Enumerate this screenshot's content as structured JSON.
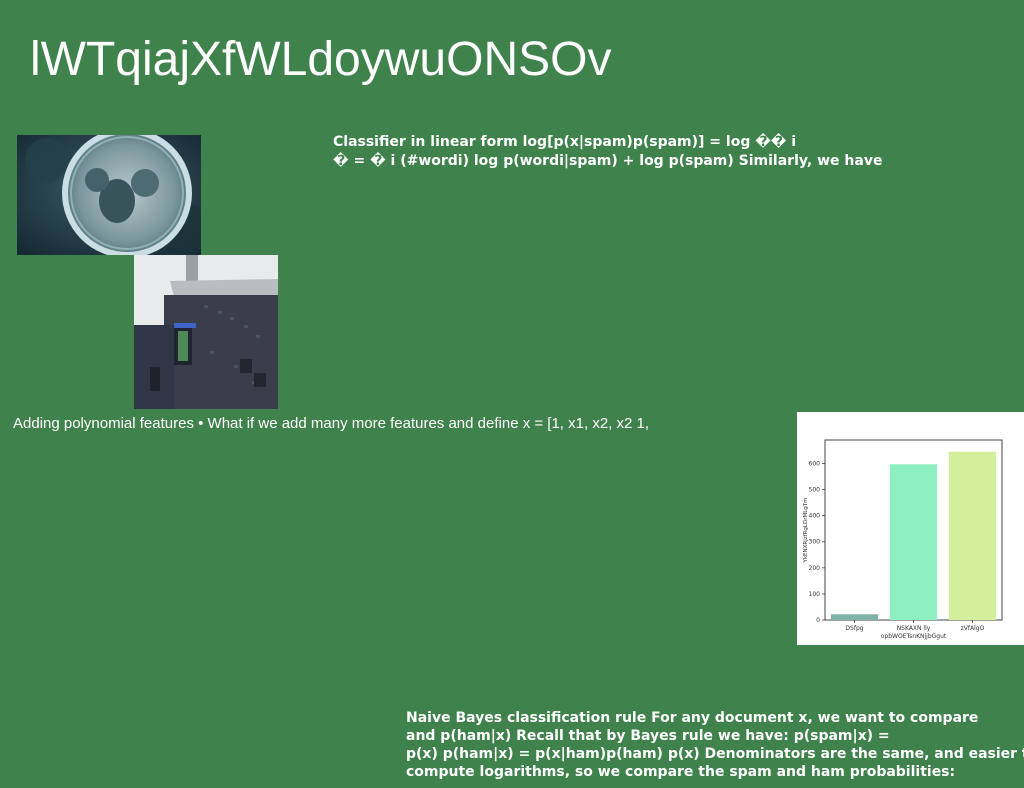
{
  "slide": {
    "title": "lWTqiajXfWLdoywuONSOv",
    "text_block_1": [
      "Classifier in linear form log[p(x|spam)p(spam)] = log �� i",
      "� = � i (#wordi) log p(wordi|spam) + log p(spam) Similarly, we have"
    ],
    "text_line_2": "Adding polynomial features • What if we add many more features and define x = [1, x1, x2, x2 1,",
    "text_block_3": [
      "Naive Bayes classification rule For any document x, we want to compare",
      "and p(ham|x) Recall that by Bayes rule we have: p(spam|x) =",
      "p(x) p(ham|x) = p(x|ham)p(ham) p(x) Denominators are the same, and easier to",
      "compute logarithms, so we compare the spam and ham probabilities:"
    ]
  },
  "colors": {
    "background": "#3f824c",
    "text": "#ffffff",
    "bar_colors": [
      "#7fb3a6",
      "#8eefc0",
      "#d2f09c"
    ]
  },
  "images": {
    "photo_1": "lens-photo",
    "photo_2": "building-photo"
  },
  "chart_data": {
    "type": "bar",
    "categories": [
      "DSfpg",
      "NSKAXN lly",
      "zVfAlgO"
    ],
    "values": [
      22,
      597,
      645
    ],
    "title": "",
    "xlabel": "opbWOETsnKNjjbGgut",
    "ylabel": "YkENXRjzfRgLDrMLgTm",
    "ylim": [
      0,
      690
    ],
    "yticks": [
      0,
      100,
      200,
      300,
      400,
      500,
      600
    ],
    "grid": false
  }
}
